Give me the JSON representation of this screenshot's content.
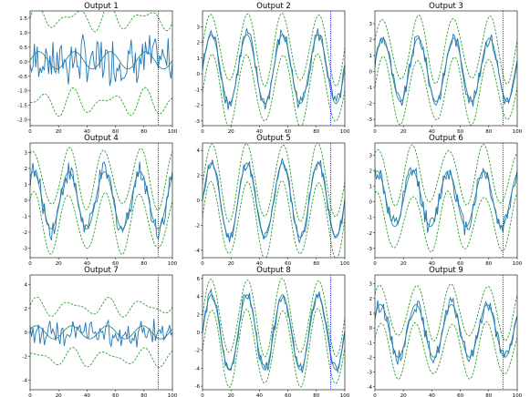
{
  "figure": {
    "colors": {
      "prediction": "#1f77b4",
      "mean": "#2c8c8c",
      "bounds": "#2ca02c",
      "split": "#0000cc"
    },
    "split_x": 90,
    "line_style": {
      "bounds": "dashed",
      "split": "dotted"
    }
  },
  "chart_data": [
    {
      "type": "line",
      "title": "Output 1",
      "xlim": [
        0,
        100
      ],
      "ylim": [
        -2.2,
        1.75
      ],
      "xticks": [
        0,
        20,
        40,
        60,
        80,
        100
      ],
      "yticks": [
        -2.0,
        -1.5,
        -1.0,
        -0.5,
        0.0,
        0.5,
        1.0,
        1.5
      ],
      "ytick_labels": [
        "-2.0",
        "-1.5",
        "-1.0",
        "-0.5",
        "0.0",
        "0.5",
        "1.0",
        "1.5"
      ],
      "kind": "noise",
      "amp": 1.2,
      "period": 25,
      "offset": 0.0,
      "center": 0.05,
      "band_half": 1.45,
      "noise_level": 0.85
    },
    {
      "type": "line",
      "title": "Output 2",
      "xlim": [
        0,
        100
      ],
      "ylim": [
        -3.3,
        4.0
      ],
      "xticks": [
        0,
        20,
        40,
        60,
        80,
        100
      ],
      "yticks": [
        -3,
        -2,
        -1,
        0,
        1,
        2,
        3
      ],
      "ytick_labels": [
        "-3",
        "-2",
        "-1",
        "0",
        "1",
        "2",
        "3"
      ],
      "kind": "wave",
      "amp": 2.2,
      "period": 25,
      "offset": 0.0,
      "center": 0.3,
      "band_half": 1.3,
      "noise_level": 0.5
    },
    {
      "type": "line",
      "title": "Output 3",
      "xlim": [
        0,
        100
      ],
      "ylim": [
        -3.4,
        3.8
      ],
      "xticks": [
        0,
        20,
        40,
        60,
        80,
        100
      ],
      "yticks": [
        -3,
        -2,
        -1,
        0,
        1,
        2,
        3
      ],
      "ytick_labels": [
        "-3",
        "-2",
        "-1",
        "0",
        "1",
        "2",
        "3"
      ],
      "kind": "wave",
      "amp": 2.0,
      "period": 25,
      "offset": 0.2,
      "center": 0.1,
      "band_half": 1.3,
      "noise_level": 0.45
    },
    {
      "type": "line",
      "title": "Output 4",
      "xlim": [
        0,
        100
      ],
      "ylim": [
        -3.6,
        3.6
      ],
      "xticks": [
        0,
        20,
        40,
        60,
        80,
        100
      ],
      "yticks": [
        -3,
        -2,
        -1,
        0,
        1,
        2,
        3
      ],
      "ytick_labels": [
        "-3",
        "-2",
        "-1",
        "0",
        "1",
        "2",
        "3"
      ],
      "kind": "wave",
      "amp": 1.8,
      "period": 25,
      "offset": 1.0,
      "center": 0.0,
      "band_half": 1.4,
      "noise_level": 0.7
    },
    {
      "type": "line",
      "title": "Output 5",
      "xlim": [
        0,
        100
      ],
      "ylim": [
        -4.6,
        4.6
      ],
      "xticks": [
        0,
        20,
        40,
        60,
        80,
        100
      ],
      "yticks": [
        -4,
        -2,
        0,
        2,
        4
      ],
      "ytick_labels": [
        "-4",
        "-2",
        "0",
        "2",
        "4"
      ],
      "kind": "wave",
      "amp": 3.0,
      "period": 25,
      "offset": 0.0,
      "center": 0.0,
      "band_half": 1.5,
      "noise_level": 0.5
    },
    {
      "type": "line",
      "title": "Output 6",
      "xlim": [
        0,
        100
      ],
      "ylim": [
        -3.6,
        3.8
      ],
      "xticks": [
        0,
        20,
        40,
        60,
        80,
        100
      ],
      "yticks": [
        -3,
        -2,
        -1,
        0,
        1,
        2,
        3
      ],
      "ytick_labels": [
        "-3",
        "-2",
        "-1",
        "0",
        "1",
        "2",
        "3"
      ],
      "kind": "wave",
      "amp": 1.8,
      "period": 25,
      "offset": 1.2,
      "center": 0.2,
      "band_half": 1.5,
      "noise_level": 0.65
    },
    {
      "type": "line",
      "title": "Output 7",
      "xlim": [
        0,
        100
      ],
      "ylim": [
        -4.8,
        4.8
      ],
      "xticks": [
        0,
        20,
        40,
        60,
        80,
        100
      ],
      "yticks": [
        -4,
        -2,
        0,
        2,
        4
      ],
      "ytick_labels": [
        "-4",
        "-2",
        "0",
        "2",
        "4"
      ],
      "kind": "noise",
      "amp": 2.2,
      "period": 25,
      "offset": 0.5,
      "center": 0.0,
      "band_half": 2.1,
      "noise_level": 1.1
    },
    {
      "type": "line",
      "title": "Output 8",
      "xlim": [
        0,
        100
      ],
      "ylim": [
        -6.4,
        6.4
      ],
      "xticks": [
        0,
        20,
        40,
        60,
        80,
        100
      ],
      "yticks": [
        -6,
        -4,
        -2,
        0,
        2,
        4,
        6
      ],
      "ytick_labels": [
        "-6",
        "-4",
        "-2",
        "0",
        "2",
        "4",
        "6"
      ],
      "kind": "wave",
      "amp": 4.2,
      "period": 25,
      "offset": 0.0,
      "center": 0.0,
      "band_half": 1.7,
      "noise_level": 0.7
    },
    {
      "type": "line",
      "title": "Output 9",
      "xlim": [
        0,
        100
      ],
      "ylim": [
        -4.2,
        3.6
      ],
      "xticks": [
        0,
        20,
        40,
        60,
        80,
        100
      ],
      "yticks": [
        -4,
        -3,
        -2,
        -1,
        0,
        1,
        2,
        3
      ],
      "ytick_labels": [
        "-4",
        "-3",
        "-2",
        "-1",
        "0",
        "1",
        "2",
        "3"
      ],
      "kind": "wave",
      "amp": 1.8,
      "period": 25,
      "offset": 0.6,
      "center": -0.2,
      "band_half": 1.3,
      "noise_level": 0.5
    }
  ]
}
